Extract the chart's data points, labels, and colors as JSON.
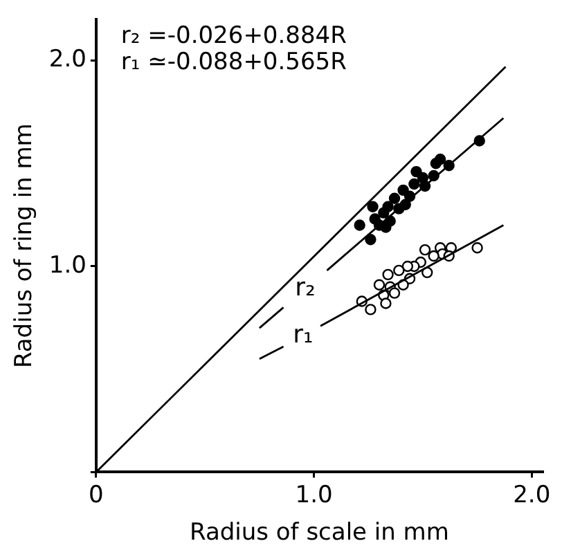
{
  "chart_data": {
    "type": "scatter",
    "xlabel": "Radius of scale in mm",
    "ylabel": "Radius of ring in mm",
    "xlim": [
      0,
      2.05
    ],
    "ylim": [
      0,
      2.2
    ],
    "xticks": [
      {
        "value": 0,
        "label": "0"
      },
      {
        "value": 1,
        "label": "1.0"
      },
      {
        "value": 2,
        "label": "2.0"
      }
    ],
    "yticks": [
      {
        "value": 0,
        "label": null
      },
      {
        "value": 1,
        "label": "1.0"
      },
      {
        "value": 2,
        "label": "2.0"
      }
    ],
    "grid": false,
    "legend": false,
    "annotations": [
      "r₂ =-0.026+0.884R",
      "r₁ ≃-0.088+0.565R"
    ],
    "series": [
      {
        "type": "line",
        "marker": "none",
        "color": "#000000",
        "x": [
          0,
          1.88
        ],
        "values": [
          0,
          1.97
        ]
      },
      {
        "type": "line",
        "marker": "none",
        "name": "r₂",
        "color": "#000000",
        "x": [
          0.75,
          0.86,
          0.96,
          1.06,
          1.87
        ],
        "values": [
          0.7,
          0.8,
          null,
          0.98,
          1.72
        ]
      },
      {
        "type": "line",
        "marker": "none",
        "name": "r₁",
        "color": "#000000",
        "x": [
          0.75,
          0.86,
          0.95,
          1.03,
          1.87
        ],
        "values": [
          0.55,
          0.61,
          null,
          0.71,
          1.2
        ]
      },
      {
        "marker": "circle",
        "color": "#000000",
        "x": [
          1.76,
          1.58,
          1.62,
          1.56,
          1.47,
          1.5,
          1.55,
          1.51,
          1.46,
          1.41,
          1.44,
          1.37,
          1.34,
          1.39,
          1.27,
          1.32,
          1.28,
          1.35,
          1.21,
          1.3,
          1.33,
          1.26,
          1.42
        ],
        "values": [
          1.61,
          1.52,
          1.49,
          1.5,
          1.46,
          1.43,
          1.44,
          1.39,
          1.4,
          1.37,
          1.34,
          1.33,
          1.29,
          1.28,
          1.29,
          1.26,
          1.23,
          1.22,
          1.2,
          1.2,
          1.19,
          1.13,
          1.3
        ]
      },
      {
        "marker": "circle",
        "color": "#ffffff",
        "x": [
          1.75,
          1.63,
          1.58,
          1.59,
          1.62,
          1.51,
          1.55,
          1.49,
          1.52,
          1.46,
          1.43,
          1.39,
          1.44,
          1.34,
          1.41,
          1.35,
          1.3,
          1.32,
          1.37,
          1.22,
          1.26,
          1.33
        ],
        "values": [
          1.09,
          1.09,
          1.09,
          1.06,
          1.05,
          1.08,
          1.05,
          1.02,
          0.97,
          1.0,
          1.0,
          0.98,
          0.94,
          0.96,
          0.91,
          0.9,
          0.91,
          0.86,
          0.87,
          0.83,
          0.79,
          0.82
        ]
      }
    ]
  }
}
